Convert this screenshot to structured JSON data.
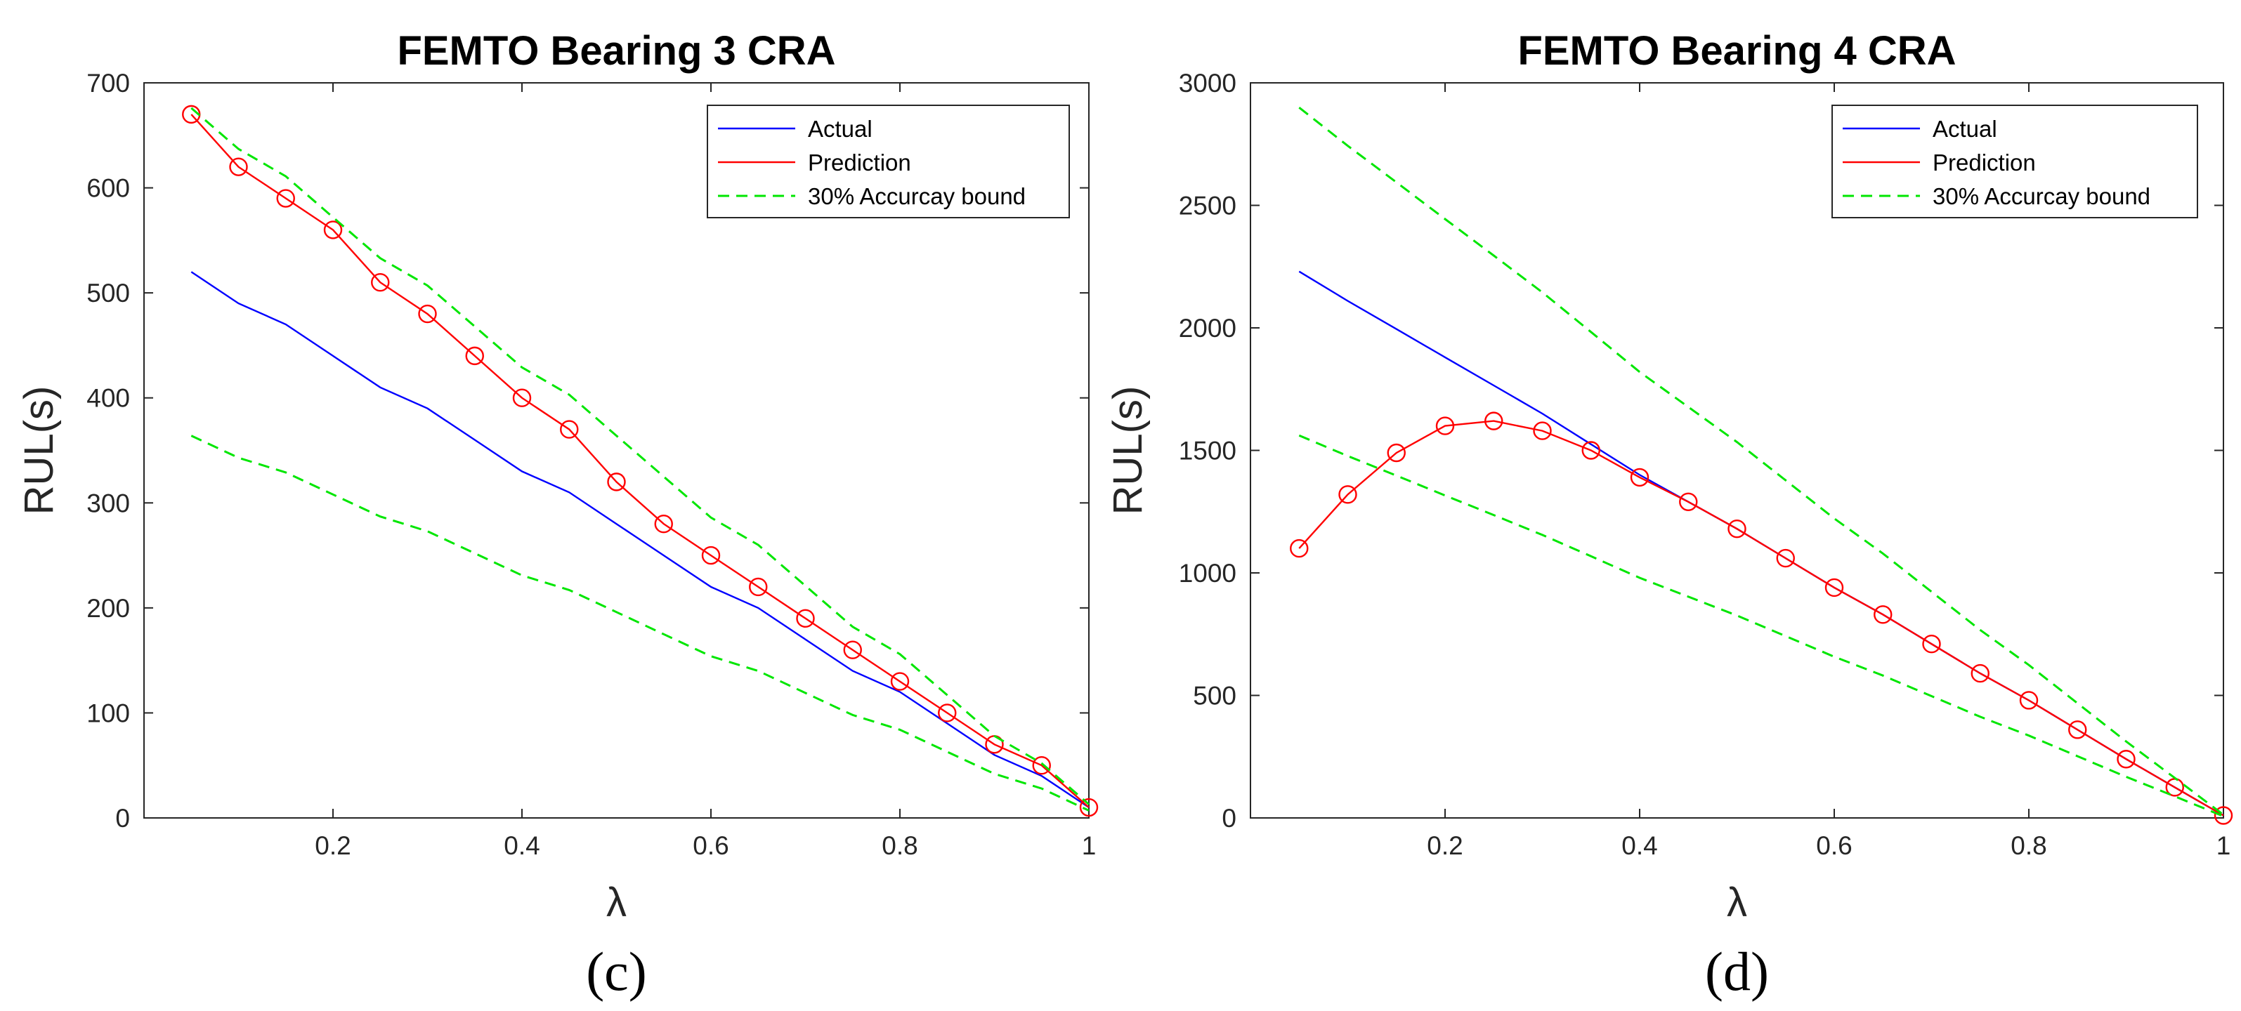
{
  "chart_data": [
    {
      "type": "line",
      "title": "FEMTO Bearing 3 CRA",
      "xlabel": "λ",
      "ylabel": "RUL(s)",
      "panel_label": "(c)",
      "xlim": [
        0,
        1
      ],
      "ylim": [
        0,
        700
      ],
      "xticks": [
        0.2,
        0.4,
        0.6,
        0.8,
        1
      ],
      "xtick_labels": [
        "0.2",
        "0.4",
        "0.6",
        "0.8",
        "1"
      ],
      "yticks": [
        0,
        100,
        200,
        300,
        400,
        500,
        600,
        700
      ],
      "ytick_labels": [
        "0",
        "100",
        "200",
        "300",
        "400",
        "500",
        "600",
        "700"
      ],
      "legend_position": "top-right",
      "x": [
        0.05,
        0.1,
        0.15,
        0.2,
        0.25,
        0.3,
        0.35,
        0.4,
        0.45,
        0.5,
        0.55,
        0.6,
        0.65,
        0.7,
        0.75,
        0.8,
        0.85,
        0.9,
        0.95,
        1.0
      ],
      "series": [
        {
          "name": "Actual",
          "color": "#0000ff",
          "style": "solid",
          "marker": "none",
          "values": [
            520,
            490,
            470,
            440,
            410,
            390,
            360,
            330,
            310,
            280,
            250,
            220,
            200,
            170,
            140,
            120,
            90,
            60,
            40,
            10
          ]
        },
        {
          "name": "Prediction",
          "color": "#ff0000",
          "style": "solid",
          "marker": "circle",
          "values": [
            670,
            620,
            590,
            560,
            510,
            480,
            440,
            400,
            370,
            320,
            280,
            250,
            220,
            190,
            160,
            130,
            100,
            70,
            50,
            10
          ]
        },
        {
          "name": "30% Accurcay bound",
          "color": "#00e600",
          "style": "dashed",
          "marker": "none",
          "values": [
            676,
            637,
            611,
            572,
            533,
            507,
            468,
            429,
            403,
            364,
            325,
            286,
            260,
            221,
            182,
            156,
            117,
            78,
            52,
            13
          ]
        },
        {
          "name": "",
          "color": "#00e600",
          "style": "dashed",
          "marker": "none",
          "legend": false,
          "values": [
            364,
            343,
            329,
            308,
            287,
            273,
            252,
            231,
            217,
            196,
            175,
            154,
            140,
            119,
            98,
            84,
            63,
            42,
            28,
            7
          ]
        }
      ]
    },
    {
      "type": "line",
      "title": "FEMTO Bearing 4 CRA",
      "xlabel": "λ",
      "ylabel": "RUL(s)",
      "panel_label": "(d)",
      "xlim": [
        0,
        1
      ],
      "ylim": [
        0,
        3000
      ],
      "xticks": [
        0.2,
        0.4,
        0.6,
        0.8,
        1
      ],
      "xtick_labels": [
        "0.2",
        "0.4",
        "0.6",
        "0.8",
        "1"
      ],
      "yticks": [
        0,
        500,
        1000,
        1500,
        2000,
        2500,
        3000
      ],
      "ytick_labels": [
        "0",
        "500",
        "1000",
        "1500",
        "2000",
        "2500",
        "3000"
      ],
      "legend_position": "top-right",
      "x": [
        0.05,
        0.1,
        0.15,
        0.2,
        0.25,
        0.3,
        0.35,
        0.4,
        0.45,
        0.5,
        0.55,
        0.6,
        0.65,
        0.7,
        0.75,
        0.8,
        0.85,
        0.9,
        0.95,
        1.0
      ],
      "series": [
        {
          "name": "Actual",
          "color": "#0000ff",
          "style": "solid",
          "marker": "none",
          "values": [
            2230,
            2110,
            1995,
            1880,
            1765,
            1650,
            1525,
            1400,
            1290,
            1180,
            1060,
            940,
            830,
            710,
            590,
            480,
            360,
            240,
            125,
            10
          ]
        },
        {
          "name": "Prediction",
          "color": "#ff0000",
          "style": "solid",
          "marker": "circle",
          "values": [
            1100,
            1320,
            1490,
            1600,
            1620,
            1580,
            1500,
            1390,
            1290,
            1180,
            1060,
            940,
            830,
            710,
            590,
            480,
            360,
            240,
            125,
            10
          ]
        },
        {
          "name": "30% Accurcay bound",
          "color": "#00e600",
          "style": "dashed",
          "marker": "none",
          "values": [
            2899,
            2743,
            2594,
            2444,
            2295,
            2145,
            1983,
            1820,
            1677,
            1534,
            1378,
            1222,
            1079,
            923,
            767,
            624,
            468,
            312,
            163,
            13
          ]
        },
        {
          "name": "",
          "color": "#00e600",
          "style": "dashed",
          "marker": "none",
          "legend": false,
          "values": [
            1561,
            1477,
            1397,
            1316,
            1236,
            1155,
            1068,
            980,
            903,
            826,
            742,
            658,
            581,
            497,
            413,
            336,
            252,
            168,
            88,
            7
          ]
        }
      ]
    }
  ]
}
